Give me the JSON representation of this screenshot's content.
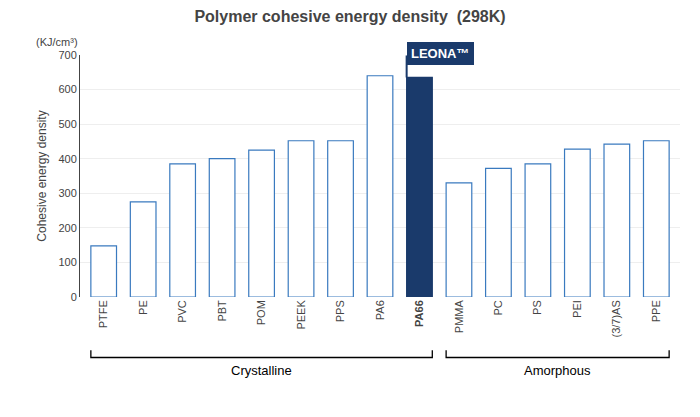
{
  "chart_data": {
    "type": "bar",
    "title": "Polymer cohesive energy density  (298K)",
    "ylabel": "Cohesive energy density",
    "categories": [
      "PTFE",
      "PE",
      "PVC",
      "PBT",
      "POM",
      "PEEK",
      "PPS",
      "PA6",
      "PA66",
      "PMMA",
      "PC",
      "PS",
      "PEI",
      "(3/7)AS",
      "PPE"
    ],
    "values": [
      148,
      275,
      385,
      400,
      425,
      452,
      452,
      640,
      635,
      330,
      372,
      385,
      428,
      442,
      452
    ],
    "colors": [
      "#ffffff",
      "#ffffff",
      "#ffffff",
      "#ffffff",
      "#ffffff",
      "#ffffff",
      "#ffffff",
      "#ffffff",
      "#1a3a6b",
      "#ffffff",
      "#ffffff",
      "#ffffff",
      "#ffffff",
      "#ffffff",
      "#ffffff"
    ],
    "ylim": [
      0,
      700
    ],
    "yticks": [
      0,
      100,
      200,
      300,
      400,
      500,
      600,
      700
    ],
    "grid": true,
    "annotations": [
      {
        "text": "(KJ/cm³)"
      },
      {
        "text": "LEONA™",
        "category": "PA66"
      },
      {
        "text": "Crystalline",
        "from": "PTFE",
        "to": "PA66"
      },
      {
        "text": "Amorphous",
        "from": "PMMA",
        "to": "PPE"
      }
    ]
  }
}
